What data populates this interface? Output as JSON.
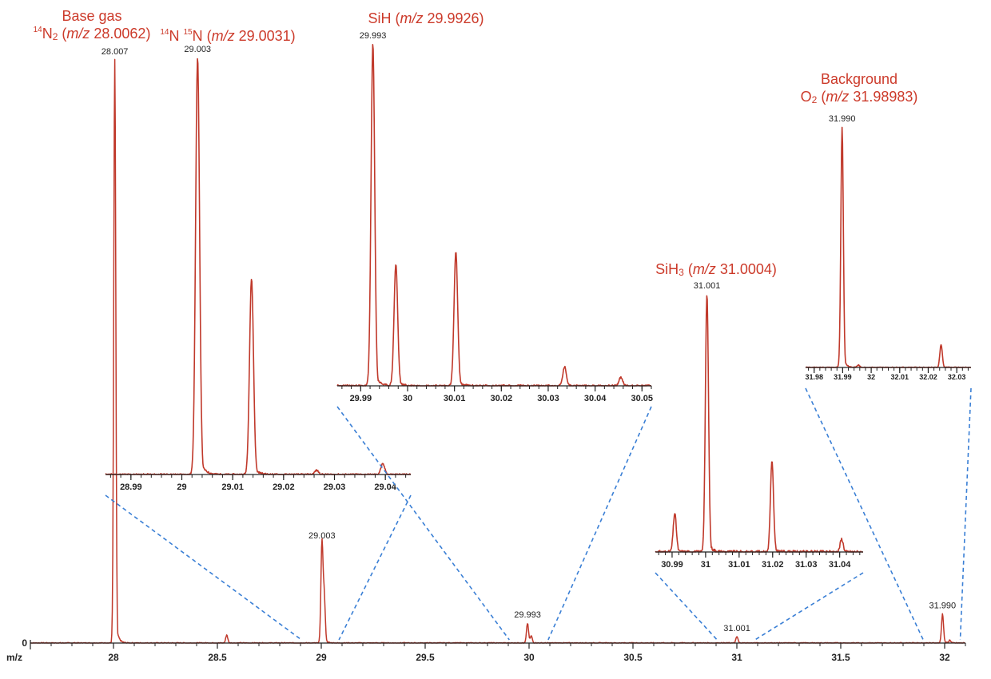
{
  "chart_data": {
    "type": "line",
    "colors": {
      "spectrum": "#c0392b",
      "guide": "#3a7fd5",
      "axis": "#222222",
      "annotation": "#cc3a2a"
    },
    "main": {
      "xlabel": "m/z",
      "xlim": [
        27.6,
        32.1
      ],
      "xticks": [
        28,
        28.5,
        29,
        29.5,
        30,
        30.5,
        31,
        31.5,
        32
      ],
      "xtick_labels": [
        "28",
        "28.5",
        "29",
        "29.5",
        "30",
        "30.5",
        "31",
        "31.5",
        "32"
      ],
      "ytick_labels": [
        "0"
      ],
      "ylim": [
        0,
        1
      ],
      "peaks": [
        {
          "x": 28.0062,
          "y": 1.0,
          "label": "28.007"
        },
        {
          "x": 28.545,
          "y": 0.014
        },
        {
          "x": 29.0031,
          "y": 0.17,
          "label": "29.003"
        },
        {
          "x": 29.014,
          "y": 0.08
        },
        {
          "x": 29.9926,
          "y": 0.034,
          "label": "29.993"
        },
        {
          "x": 30.0105,
          "y": 0.012
        },
        {
          "x": 31.0004,
          "y": 0.011,
          "label": "31.001"
        },
        {
          "x": 31.9898,
          "y": 0.05,
          "label": "31.990"
        },
        {
          "x": 32.025,
          "y": 0.005
        }
      ]
    },
    "insets": [
      {
        "name": "14N15N",
        "xlim": [
          28.985,
          29.045
        ],
        "xticks": [
          28.99,
          29,
          29.01,
          29.02,
          29.03,
          29.04
        ],
        "xtick_labels": [
          "28.99",
          "29",
          "29.01",
          "29.02",
          "29.03",
          "29.04"
        ],
        "peaks": [
          {
            "x": 29.0031,
            "y": 1.0,
            "label": "29.003"
          },
          {
            "x": 29.0137,
            "y": 0.47
          },
          {
            "x": 29.0265,
            "y": 0.01
          },
          {
            "x": 29.0395,
            "y": 0.025
          }
        ]
      },
      {
        "name": "SiH",
        "xlim": [
          29.985,
          30.052
        ],
        "xticks": [
          29.99,
          30,
          30.01,
          30.02,
          30.03,
          30.04,
          30.05
        ],
        "xtick_labels": [
          "29.99",
          "30",
          "30.01",
          "30.02",
          "30.03",
          "30.04",
          "30.05"
        ],
        "peaks": [
          {
            "x": 29.9926,
            "y": 1.0,
            "label": "29.993"
          },
          {
            "x": 29.9975,
            "y": 0.355
          },
          {
            "x": 30.0103,
            "y": 0.39
          },
          {
            "x": 30.0335,
            "y": 0.055
          },
          {
            "x": 30.0455,
            "y": 0.025
          }
        ]
      },
      {
        "name": "SiH3",
        "xlim": [
          30.985,
          31.047
        ],
        "xticks": [
          30.99,
          31,
          31.01,
          31.02,
          31.03,
          31.04
        ],
        "xtick_labels": [
          "30.99",
          "31",
          "31.01",
          "31.02",
          "31.03",
          "31.04"
        ],
        "peaks": [
          {
            "x": 30.9908,
            "y": 0.15
          },
          {
            "x": 31.0004,
            "y": 1.0,
            "label": "31.001"
          },
          {
            "x": 31.0198,
            "y": 0.35
          },
          {
            "x": 31.0406,
            "y": 0.05
          }
        ]
      },
      {
        "name": "O2",
        "xlim": [
          31.977,
          32.035
        ],
        "xticks": [
          31.98,
          31.99,
          32,
          32.01,
          32.02,
          32.03
        ],
        "xtick_labels": [
          "31.98",
          "31.99",
          "32",
          "32.01",
          "32.02",
          "32.03"
        ],
        "peaks": [
          {
            "x": 31.9898,
            "y": 1.0,
            "label": "31.990"
          },
          {
            "x": 31.9955,
            "y": 0.01
          },
          {
            "x": 32.0245,
            "y": 0.095
          }
        ]
      }
    ],
    "annotations": {
      "base": {
        "line1": "Base gas",
        "iso14": "14",
        "n2": "N",
        "n2sub": "2",
        "open": " (",
        "mz": "m/z",
        "value": " 28.0062)"
      },
      "n15": {
        "iso14": "14",
        "n1": "N ",
        "iso15": "15",
        "n2": "N (",
        "mz": "m/z",
        "value": " 29.0031)"
      },
      "sih": {
        "text": "SiH (",
        "mz": "m/z",
        "value": " 29.9926)"
      },
      "sih3": {
        "text": "SiH",
        "sub": "3",
        "open": " (",
        "mz": "m/z",
        "value": " 31.0004)"
      },
      "o2": {
        "line1": "Background",
        "o": "O",
        "sub": "2",
        "open": " (",
        "mz": "m/z",
        "value": " 31.98983)"
      }
    }
  }
}
